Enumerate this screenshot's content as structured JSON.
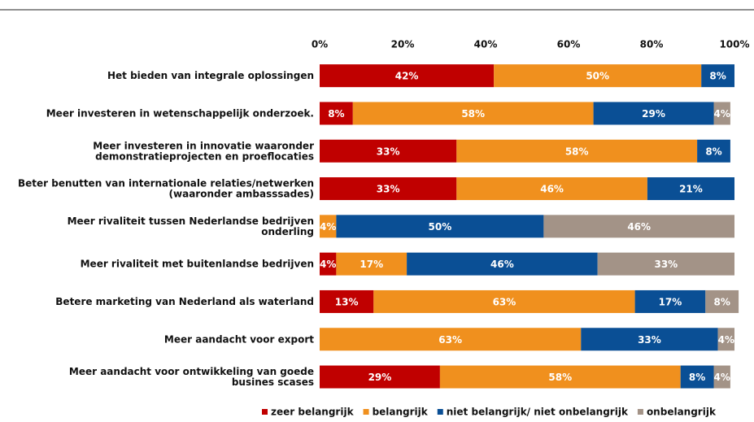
{
  "chart_data": {
    "type": "stacked-bar-horizontal",
    "categories": [
      "Het bieden van integrale oplossingen",
      "Meer investeren in wetenschappelijk onderzoek.",
      "Meer investeren in innovatie waaronder\ndemonstratieprojecten en proeflocaties",
      "Beter benutten van internationale relaties/netwerken\n(waaronder ambasssades)",
      "Meer rivaliteit tussen Nederlandse bedrijven\nonderling",
      "Meer rivaliteit met buitenlandse bedrijven",
      "Betere marketing van Nederland als waterland",
      "Meer aandacht voor export",
      "Meer aandacht voor ontwikkeling van goede\nbusines scases"
    ],
    "series": [
      {
        "name": "zeer belangrijk",
        "color": "#c00000",
        "values": [
          42,
          8,
          33,
          33,
          null,
          4,
          13,
          null,
          29
        ],
        "value_labels": [
          "42%",
          "8%",
          "33%",
          "33%",
          null,
          "4%",
          "13%",
          null,
          "29%"
        ]
      },
      {
        "name": "belangrijk",
        "color": "#f0901e",
        "values": [
          50,
          58,
          58,
          46,
          4,
          17,
          63,
          63,
          58
        ],
        "value_labels": [
          "50%",
          "58%",
          "58%",
          "46%",
          "4%",
          "17%",
          "63%",
          "63%",
          "58%"
        ]
      },
      {
        "name": "niet belangrijk/ niet onbelangrijk",
        "color": "#0a4f95",
        "values": [
          8,
          29,
          8,
          21,
          50,
          46,
          17,
          33,
          8
        ],
        "value_labels": [
          "8%",
          "29%",
          "8%",
          "21%",
          "50%",
          "46%",
          "17%",
          "33%",
          "8%"
        ]
      },
      {
        "name": "onbelangrijk",
        "color": "#a39387",
        "values": [
          null,
          4,
          null,
          null,
          46,
          33,
          8,
          4,
          4
        ],
        "value_labels": [
          null,
          "4%",
          null,
          null,
          "46%",
          "33%",
          "8%",
          "4%",
          "4%"
        ]
      }
    ],
    "xlim": [
      0,
      100
    ],
    "xticks": [
      {
        "value": 0,
        "label": "0%"
      },
      {
        "value": 20,
        "label": "20%"
      },
      {
        "value": 40,
        "label": "40%"
      },
      {
        "value": 60,
        "label": "60%"
      },
      {
        "value": 80,
        "label": "80%"
      },
      {
        "value": 100,
        "label": "100%"
      }
    ]
  }
}
